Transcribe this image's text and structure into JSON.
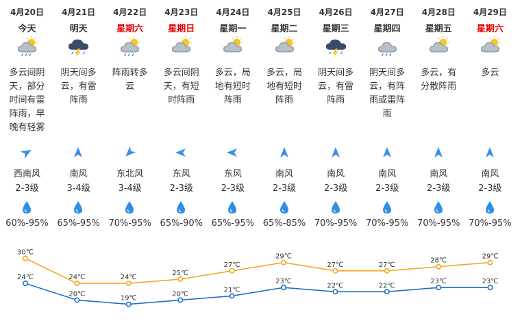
{
  "days": [
    {
      "date": "4月20日",
      "dow": "今天",
      "weekend": false,
      "icon": "cloud-sun-rain-icon",
      "desc": [
        "多云间阴",
        "天，部分",
        "时间有雷",
        "阵雨，早",
        "晚有轻雾"
      ],
      "wind_dir": "西南风",
      "wind_level": "2-3级",
      "wind_rotation": 60,
      "humidity": "60%-95%"
    },
    {
      "date": "4月21日",
      "dow": "明天",
      "weekend": false,
      "icon": "thunderstorm-icon",
      "desc": [
        "阴天间多",
        "云，有雷",
        "阵雨"
      ],
      "wind_dir": "南风",
      "wind_level": "3-4级",
      "wind_rotation": 0,
      "humidity": "65%-95%"
    },
    {
      "date": "4月22日",
      "dow": "星期六",
      "weekend": true,
      "icon": "cloud-sun-rain-icon",
      "desc": [
        "阵雨转多",
        "云"
      ],
      "wind_dir": "东北风",
      "wind_level": "3-4级",
      "wind_rotation": 225,
      "humidity": "70%-95%"
    },
    {
      "date": "4月23日",
      "dow": "星期日",
      "weekend": true,
      "icon": "cloud-sun-icon",
      "desc": [
        "多云间阴",
        "天，有短",
        "时阵雨"
      ],
      "wind_dir": "东风",
      "wind_level": "2-3级",
      "wind_rotation": 270,
      "humidity": "65%-90%"
    },
    {
      "date": "4月24日",
      "dow": "星期一",
      "weekend": false,
      "icon": "cloud-sun-icon",
      "desc": [
        "多云，局",
        "地有短时",
        "阵雨"
      ],
      "wind_dir": "东风",
      "wind_level": "2-3级",
      "wind_rotation": 270,
      "humidity": "65%-95%"
    },
    {
      "date": "4月25日",
      "dow": "星期二",
      "weekend": false,
      "icon": "cloud-sun-icon",
      "desc": [
        "多云，局",
        "地有短时",
        "阵雨"
      ],
      "wind_dir": "南风",
      "wind_level": "2-3级",
      "wind_rotation": 0,
      "humidity": "65%-85%"
    },
    {
      "date": "4月26日",
      "dow": "星期三",
      "weekend": false,
      "icon": "thunderstorm-icon",
      "desc": [
        "阴天间多",
        "云，有雷",
        "阵雨"
      ],
      "wind_dir": "南风",
      "wind_level": "2-3级",
      "wind_rotation": 0,
      "humidity": "70%-95%"
    },
    {
      "date": "4月27日",
      "dow": "星期四",
      "weekend": false,
      "icon": "cloud-rain-icon",
      "desc": [
        "阴天间多",
        "云，有阵",
        "雨或雷阵",
        "雨"
      ],
      "wind_dir": "南风",
      "wind_level": "2-3级",
      "wind_rotation": 0,
      "humidity": "70%-95%"
    },
    {
      "date": "4月28日",
      "dow": "星期五",
      "weekend": false,
      "icon": "cloud-sun-icon",
      "desc": [
        "多云，有",
        "分散阵雨"
      ],
      "wind_dir": "南风",
      "wind_level": "2-3级",
      "wind_rotation": 0,
      "humidity": "70%-95%"
    },
    {
      "date": "4月29日",
      "dow": "星期六",
      "weekend": true,
      "icon": "cloud-sun-icon",
      "desc": [
        "多云"
      ],
      "wind_dir": "南风",
      "wind_level": "2-3级",
      "wind_rotation": 0,
      "humidity": "70%-95%"
    }
  ],
  "colors": {
    "high": "#f5a623",
    "low": "#1f6fc5",
    "weekend": "#e60000",
    "drop": "#2f8fe6",
    "arrow": "#3a8ee6"
  },
  "chart_data": {
    "type": "line",
    "x": [
      "4月20日",
      "4月21日",
      "4月22日",
      "4月23日",
      "4月24日",
      "4月25日",
      "4月26日",
      "4月27日",
      "4月28日",
      "4月29日"
    ],
    "series": [
      {
        "values": [
          30,
          24,
          24,
          25,
          27,
          29,
          27,
          27,
          28,
          29
        ],
        "labels": [
          "30℃",
          "24℃",
          "24℃",
          "25℃",
          "27℃",
          "29℃",
          "27℃",
          "27℃",
          "28℃",
          "29℃"
        ]
      },
      {
        "values": [
          24,
          20,
          19,
          20,
          21,
          23,
          22,
          22,
          23,
          23
        ],
        "labels": [
          "24℃",
          "20℃",
          "19℃",
          "20℃",
          "21℃",
          "23℃",
          "22℃",
          "22℃",
          "23℃",
          "23℃"
        ]
      }
    ],
    "legend": "none",
    "grid": false
  }
}
